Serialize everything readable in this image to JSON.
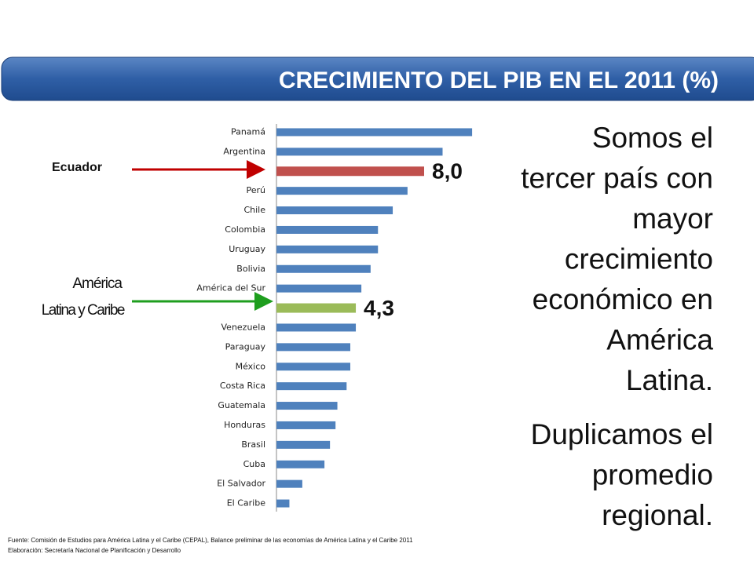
{
  "chart_data": {
    "type": "bar",
    "orientation": "horizontal",
    "title": "CRECIMIENTO DEL PIB EN EL 2011 (%)",
    "categories": [
      "Panamá",
      "Argentina",
      null,
      "Perú",
      "Chile",
      "Colombia",
      "Uruguay",
      "Bolivia",
      "América del Sur",
      null,
      "Venezuela",
      "Paraguay",
      "México",
      "Costa Rica",
      "Guatemala",
      "Honduras",
      "Brasil",
      "Cuba",
      "El Salvador",
      "El Caribe"
    ],
    "values": [
      10.6,
      9.0,
      8.0,
      7.1,
      6.3,
      5.5,
      5.5,
      5.1,
      4.6,
      4.3,
      4.3,
      4.0,
      4.0,
      3.8,
      3.3,
      3.2,
      2.9,
      2.6,
      1.4,
      0.7
    ],
    "value_labels": [
      null,
      null,
      "8,0",
      null,
      null,
      null,
      null,
      null,
      null,
      "4,3",
      null,
      null,
      null,
      null,
      null,
      null,
      null,
      null,
      null,
      null
    ],
    "colors": [
      "#4f81bd",
      "#4f81bd",
      "#c0504d",
      "#4f81bd",
      "#4f81bd",
      "#4f81bd",
      "#4f81bd",
      "#4f81bd",
      "#4f81bd",
      "#9bbb59",
      "#4f81bd",
      "#4f81bd",
      "#4f81bd",
      "#4f81bd",
      "#4f81bd",
      "#4f81bd",
      "#4f81bd",
      "#4f81bd",
      "#4f81bd",
      "#4f81bd"
    ],
    "xlim": [
      0,
      11
    ],
    "annotations": [
      "Ecuador",
      "América",
      "Latina y Caribe"
    ]
  },
  "slide": {
    "text_blocks": [
      [
        "Somos el",
        "tercer país con",
        "mayor",
        "crecimiento",
        "económico en",
        "América",
        "Latina."
      ],
      [
        "Duplicamos el",
        "promedio",
        "regional."
      ]
    ],
    "sources": [
      "Fuente: Comisión de Estudios para América Latina y el Caribe (CEPAL), Balance preliminar de las economías de América Latina y el Caribe 2011",
      "Elaboración: Secretaría Nacional de Planificación y Desarrollo"
    ]
  }
}
